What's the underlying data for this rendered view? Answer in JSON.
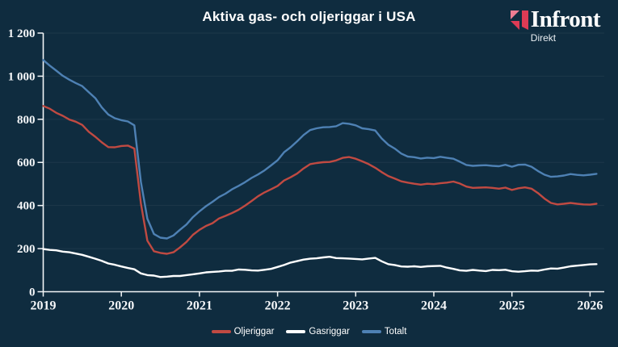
{
  "title": "Aktiva gas- och oljeriggar i USA",
  "logo": {
    "name": "Infront",
    "sub": "Direkt"
  },
  "colors": {
    "background": "#0f2c3f",
    "axis": "#f2f5f7",
    "grid": "rgba(255,255,255,0.06)",
    "oil": "#c04a42",
    "gas": "#ffffff",
    "total": "#4e81b4",
    "logo_pink": "#ef7d92",
    "logo_red": "#de3b55"
  },
  "chart_data": {
    "type": "line",
    "title": "Aktiva gas- och oljeriggar i USA",
    "xlabel": "",
    "ylabel": "",
    "ylim": [
      0,
      1200
    ],
    "xlim": [
      2019,
      2026.17
    ],
    "grid": "faint horizontal gridlines every 200",
    "legend_position": "bottom",
    "x_unit": "year (monthly samples)",
    "x_start": 2019,
    "x_step": 0.08333,
    "x_ticks": [
      2019,
      2020,
      2021,
      2022,
      2023,
      2024,
      2025,
      2026
    ],
    "y_ticks": [
      {
        "value": 0,
        "label": "0"
      },
      {
        "value": 200,
        "label": "200"
      },
      {
        "value": 400,
        "label": "400"
      },
      {
        "value": 600,
        "label": "600"
      },
      {
        "value": 800,
        "label": "800"
      },
      {
        "value": 1000,
        "label": "1 000"
      },
      {
        "value": 1200,
        "label": "1 200"
      }
    ],
    "series": [
      {
        "name": "Oljeriggar",
        "color": "#c04a42",
        "values": [
          862,
          849,
          830,
          816,
          799,
          789,
          774,
          742,
          719,
          693,
          671,
          670,
          676,
          678,
          664,
          410,
          237,
          188,
          180,
          176,
          183,
          205,
          231,
          264,
          287,
          305,
          318,
          340,
          352,
          365,
          380,
          399,
          421,
          443,
          461,
          475,
          491,
          516,
          531,
          548,
          572,
          592,
          597,
          601,
          602,
          609,
          621,
          625,
          617,
          605,
          592,
          575,
          555,
          537,
          525,
          512,
          506,
          501,
          497,
          501,
          499,
          503,
          506,
          511,
          502,
          488,
          482,
          483,
          484,
          482,
          478,
          483,
          472,
          480,
          484,
          478,
          458,
          432,
          412,
          405,
          408,
          412,
          408,
          405,
          404,
          408
        ]
      },
      {
        "name": "Gasriggar",
        "color": "#ffffff",
        "values": [
          198,
          194,
          192,
          186,
          183,
          177,
          171,
          162,
          153,
          143,
          131,
          125,
          117,
          110,
          104,
          85,
          77,
          75,
          68,
          70,
          73,
          73,
          77,
          81,
          85,
          90,
          92,
          94,
          97,
          97,
          103,
          102,
          99,
          98,
          102,
          106,
          115,
          124,
          135,
          142,
          149,
          153,
          155,
          159,
          162,
          156,
          155,
          154,
          152,
          150,
          154,
          157,
          141,
          128,
          124,
          117,
          116,
          118,
          115,
          118,
          119,
          120,
          112,
          106,
          99,
          97,
          101,
          98,
          96,
          101,
          100,
          102,
          95,
          93,
          95,
          98,
          97,
          103,
          108,
          107,
          112,
          118,
          121,
          124,
          127,
          128
        ]
      },
      {
        "name": "Totalt",
        "color": "#4e81b4",
        "values": [
          1075,
          1049,
          1026,
          1002,
          984,
          968,
          954,
          926,
          898,
          855,
          822,
          805,
          796,
          790,
          772,
          510,
          339,
          268,
          251,
          247,
          261,
          287,
          312,
          346,
          373,
          397,
          417,
          439,
          455,
          475,
          491,
          508,
          528,
          544,
          563,
          586,
          610,
          647,
          670,
          698,
          727,
          750,
          758,
          763,
          764,
          768,
          782,
          779,
          772,
          758,
          754,
          748,
          711,
          682,
          664,
          641,
          627,
          624,
          618,
          622,
          620,
          626,
          621,
          617,
          603,
          588,
          584,
          586,
          587,
          584,
          582,
          589,
          580,
          589,
          590,
          580,
          560,
          543,
          533,
          535,
          539,
          546,
          542,
          540,
          543,
          547
        ]
      }
    ]
  }
}
